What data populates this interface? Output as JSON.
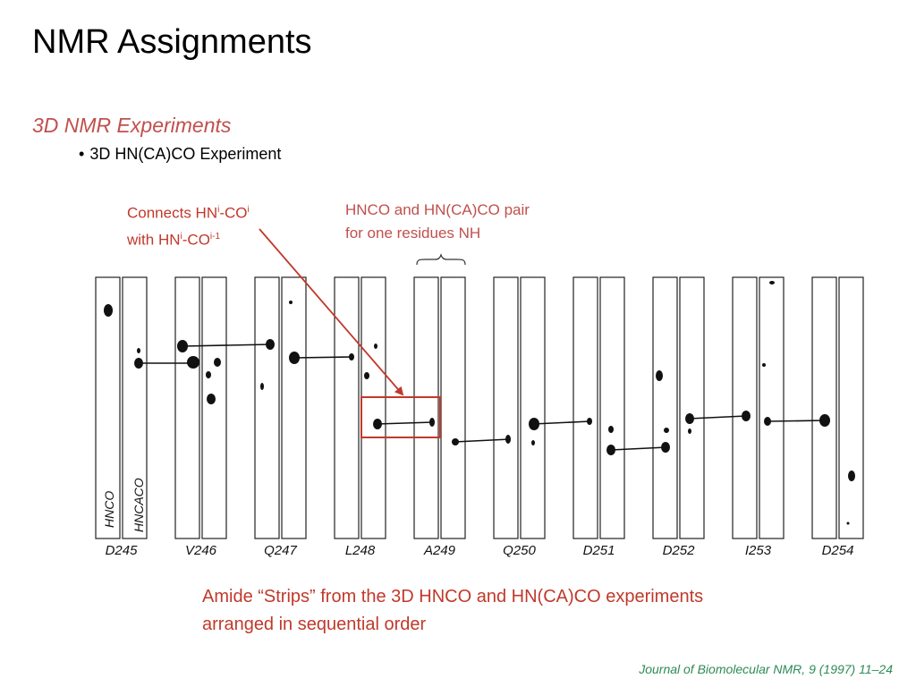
{
  "slide": {
    "title": "NMR Assignments",
    "subtitle": "3D NMR Experiments",
    "bullet": "3D HN(CA)CO Experiment"
  },
  "callout_connects": {
    "line1_prefix": "Connects HN",
    "line1_sup1": "i",
    "line1_mid": "-CO",
    "line1_sup2": "i",
    "line2_prefix": "with HN",
    "line2_sup1": "i",
    "line2_mid": "-CO",
    "line2_sup2": "i-1"
  },
  "callout_pair": {
    "line1": "HNCO and HN(CA)CO pair",
    "line2": "for one residues NH"
  },
  "figure": {
    "experiments": [
      "HNCO",
      "HNCACO"
    ],
    "residues": [
      "D245",
      "V246",
      "Q247",
      "L248",
      "A249",
      "Q250",
      "D251",
      "D252",
      "I253",
      "D254"
    ]
  },
  "caption": {
    "line1": "Amide “Strips” from the 3D HNCO and HN(CA)CO experiments",
    "line2": "arranged in sequential order"
  },
  "citation": "Journal of Biomolecular NMR, 9 (1997) 11–24",
  "colors": {
    "accent": "#c0504d",
    "arrow": "#c0392b",
    "citation": "#2e8b57"
  }
}
